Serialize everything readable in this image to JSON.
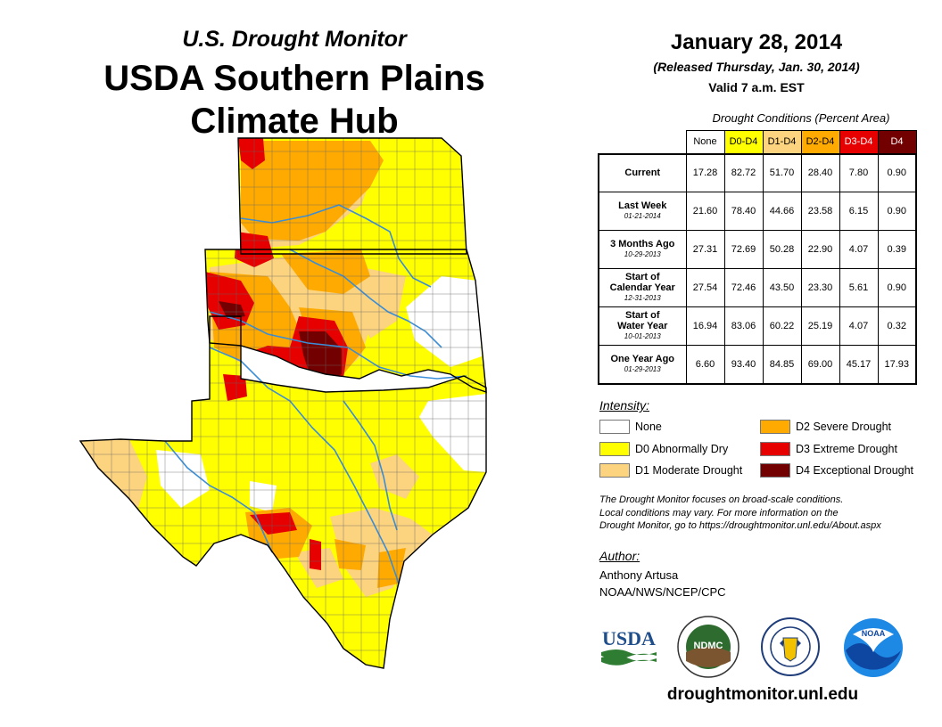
{
  "map": {
    "subtitle": "U.S. Drought Monitor",
    "title_line1": "USDA Southern Plains",
    "title_line2": "Climate Hub"
  },
  "header": {
    "date": "January 28, 2014",
    "released": "(Released Thursday, Jan. 30, 2014)",
    "valid": "Valid 7 a.m. EST"
  },
  "table": {
    "caption": "Drought Conditions (Percent Area)",
    "columns": [
      "None",
      "D0-D4",
      "D1-D4",
      "D2-D4",
      "D3-D4",
      "D4"
    ],
    "rows": [
      {
        "label": "Current",
        "sub": "",
        "values": [
          "17.28",
          "82.72",
          "51.70",
          "28.40",
          "7.80",
          "0.90"
        ]
      },
      {
        "label": "Last Week",
        "sub": "01-21-2014",
        "values": [
          "21.60",
          "78.40",
          "44.66",
          "23.58",
          "6.15",
          "0.90"
        ]
      },
      {
        "label": "3 Months Ago",
        "sub": "10-29-2013",
        "values": [
          "27.31",
          "72.69",
          "50.28",
          "22.90",
          "4.07",
          "0.39"
        ]
      },
      {
        "label": "Start of\nCalendar Year",
        "sub": "12-31-2013",
        "values": [
          "27.54",
          "72.46",
          "43.50",
          "23.30",
          "5.61",
          "0.90"
        ]
      },
      {
        "label": "Start of\nWater Year",
        "sub": "10-01-2013",
        "values": [
          "16.94",
          "83.06",
          "60.22",
          "25.19",
          "4.07",
          "0.32"
        ]
      },
      {
        "label": "One Year Ago",
        "sub": "01-29-2013",
        "values": [
          "6.60",
          "93.40",
          "84.85",
          "69.00",
          "45.17",
          "17.93"
        ]
      }
    ]
  },
  "legend": {
    "title": "Intensity:",
    "items": [
      {
        "label": "None",
        "color": "#ffffff"
      },
      {
        "label": "D0 Abnormally Dry",
        "color": "#ffff00"
      },
      {
        "label": "D1 Moderate Drought",
        "color": "#fcd37f"
      },
      {
        "label": "D2 Severe Drought",
        "color": "#ffaa00"
      },
      {
        "label": "D3 Extreme Drought",
        "color": "#e60000"
      },
      {
        "label": "D4 Exceptional Drought",
        "color": "#730000"
      }
    ]
  },
  "note": {
    "line1": "The Drought Monitor focuses on broad-scale conditions.",
    "line2": "Local conditions may vary. For more information on the",
    "line3": "Drought Monitor, go to https://droughtmonitor.unl.edu/About.aspx"
  },
  "author": {
    "title": "Author:",
    "name": "Anthony Artusa",
    "org": "NOAA/NWS/NCEP/CPC"
  },
  "logos": {
    "usda": "USDA",
    "ndmc": "NDMC",
    "noaa": "NOAA"
  },
  "footer": {
    "url": "droughtmonitor.unl.edu"
  }
}
